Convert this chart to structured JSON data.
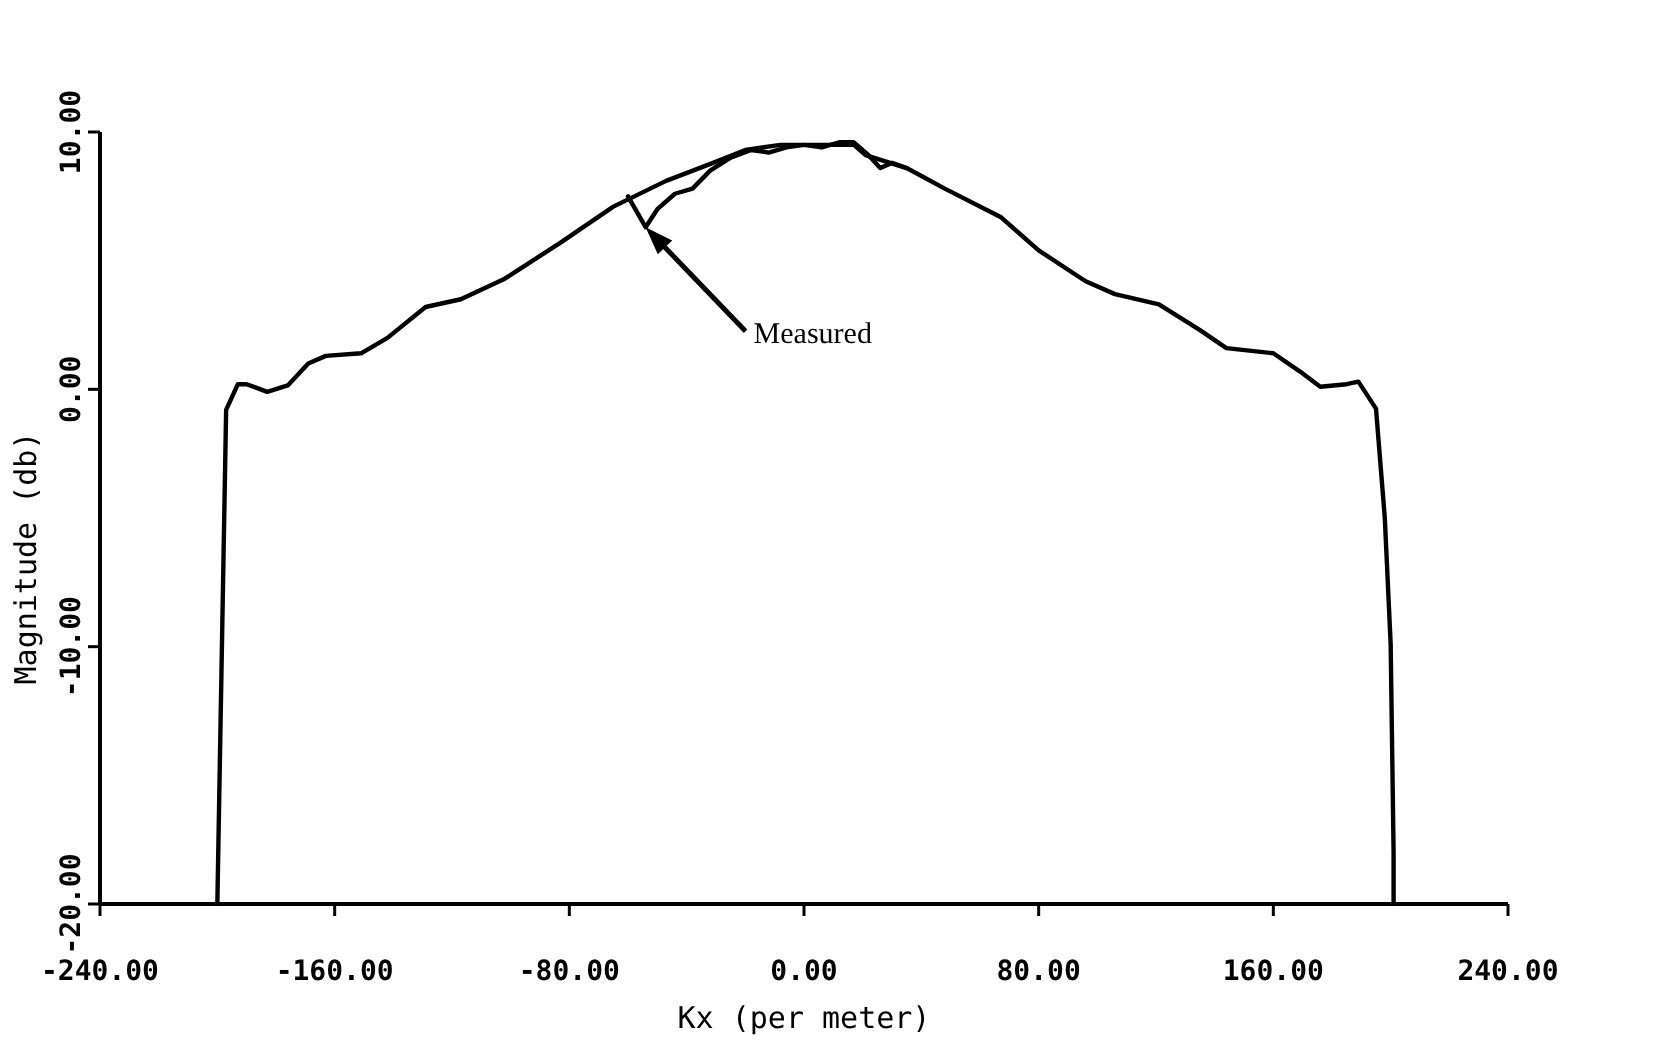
{
  "chart_data": {
    "type": "line",
    "xlabel": "Kx (per meter)",
    "ylabel": "Magnitude (db)",
    "xlim": [
      -240,
      240
    ],
    "ylim": [
      -20,
      10
    ],
    "xticks": [
      {
        "value": -240,
        "label": "-240.00"
      },
      {
        "value": -160,
        "label": "-160.00"
      },
      {
        "value": -80,
        "label": "-80.00"
      },
      {
        "value": 0,
        "label": "0.00"
      },
      {
        "value": 80,
        "label": "80.00"
      },
      {
        "value": 160,
        "label": "160.00"
      },
      {
        "value": 240,
        "label": "240.00"
      }
    ],
    "yticks": [
      {
        "value": -20,
        "label": "-20.00"
      },
      {
        "value": -10,
        "label": "-10.00"
      },
      {
        "value": 0,
        "label": "0.00"
      },
      {
        "value": 10,
        "label": "10.00"
      }
    ],
    "grid": false,
    "marker": "none",
    "line_style": "solid",
    "annotations": [
      "Measured"
    ],
    "series": [
      {
        "color": "#000000",
        "x": [
          -200,
          -197,
          -193,
          -190,
          -183,
          -176,
          -169,
          -163,
          -151,
          -142,
          -129,
          -117,
          -102,
          -83,
          -65,
          -47,
          -31,
          -20,
          -8,
          0,
          8,
          17,
          21,
          35,
          48,
          67,
          80,
          96,
          106,
          121,
          135,
          144,
          160,
          169,
          176,
          185,
          189,
          195,
          198,
          200,
          201,
          201
        ],
        "values": [
          -20,
          -0.8,
          0.2,
          0.2,
          -0.1,
          0.15,
          1.0,
          1.3,
          1.4,
          2.0,
          3.2,
          3.5,
          4.3,
          5.7,
          7.1,
          8.1,
          8.8,
          9.3,
          9.5,
          9.5,
          9.5,
          9.5,
          9.1,
          8.6,
          7.8,
          6.7,
          5.4,
          4.2,
          3.7,
          3.3,
          2.3,
          1.6,
          1.4,
          0.7,
          0.1,
          0.2,
          0.3,
          -0.75,
          -5,
          -9.9,
          -18,
          -20
        ]
      },
      {
        "color": "#000000",
        "x": [
          -60,
          -54,
          -50,
          -44,
          -38,
          -32,
          -25,
          -18,
          -12,
          -6,
          0,
          6,
          12,
          17,
          22,
          26,
          30,
          35
        ],
        "values": [
          7.5,
          6.3,
          7.0,
          7.6,
          7.8,
          8.5,
          9.0,
          9.3,
          9.2,
          9.4,
          9.5,
          9.4,
          9.6,
          9.6,
          9.1,
          8.6,
          8.8,
          8.6
        ]
      }
    ]
  }
}
